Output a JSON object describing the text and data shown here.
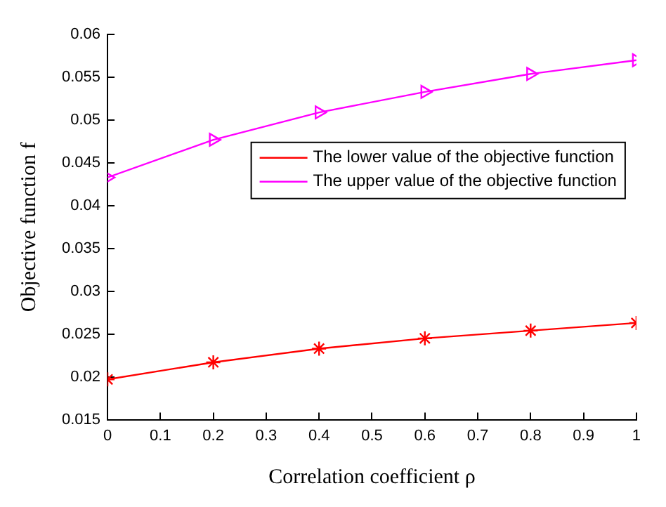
{
  "chart_data": {
    "type": "line",
    "xlabel": "Correlation coefficient ρ",
    "ylabel": "Objective function f",
    "x": [
      0,
      0.2,
      0.4,
      0.6,
      0.8,
      1
    ],
    "series": [
      {
        "name": "The lower value of the objective function",
        "color": "#ff0000",
        "marker": "cross",
        "values": [
          0.0197,
          0.0217,
          0.0233,
          0.0245,
          0.0254,
          0.0263
        ]
      },
      {
        "name": "The upper value of the objective function",
        "color": "#ff00ff",
        "marker": "triangle",
        "values": [
          0.0433,
          0.0477,
          0.0509,
          0.0533,
          0.0554,
          0.057
        ]
      }
    ],
    "xlim": [
      0,
      1
    ],
    "xticks": [
      0,
      0.1,
      0.2,
      0.3,
      0.4,
      0.5,
      0.6,
      0.7,
      0.8,
      0.9,
      1
    ],
    "ylim": [
      0.015,
      0.06
    ],
    "yticks": [
      0.015,
      0.02,
      0.025,
      0.03,
      0.035,
      0.04,
      0.045,
      0.05,
      0.055,
      0.06
    ],
    "grid": false,
    "legend": "top right"
  }
}
